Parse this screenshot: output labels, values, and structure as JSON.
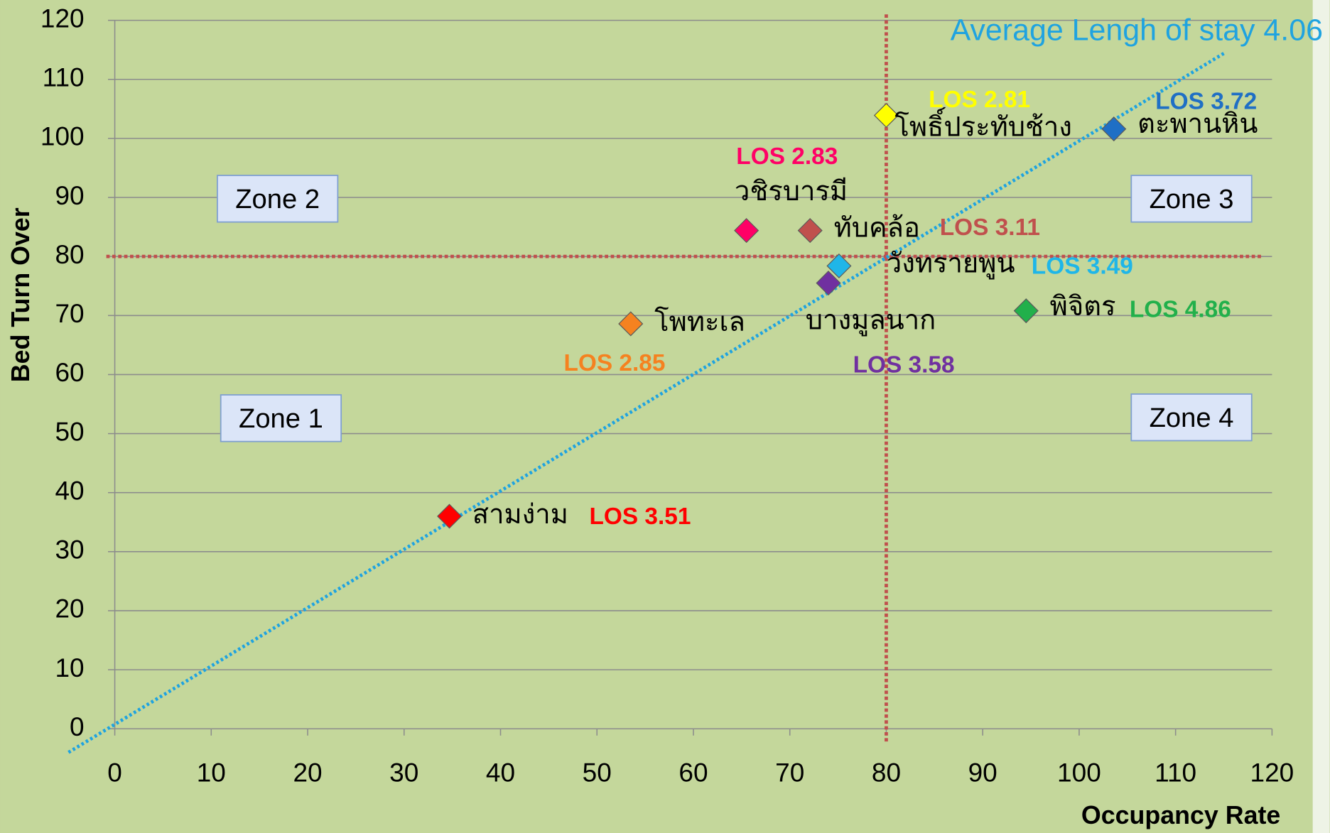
{
  "chart_data": {
    "type": "scatter",
    "xlabel": "Occupancy Rate",
    "ylabel": "Bed Turn Over",
    "xlim": [
      0,
      120
    ],
    "ylim": [
      0,
      120
    ],
    "xticks": [
      0,
      10,
      20,
      30,
      40,
      50,
      60,
      70,
      80,
      90,
      100,
      110,
      120
    ],
    "yticks": [
      0,
      10,
      20,
      30,
      40,
      50,
      60,
      70,
      80,
      90,
      100,
      110,
      120
    ],
    "grid": true,
    "vline": 80,
    "hline": 80,
    "trendline": {
      "label": "Average Lengh of stay 4.06",
      "color": "#1fa3e0",
      "x": [
        -4.8,
        115
      ],
      "y": [
        -4,
        114.4
      ]
    },
    "zones": [
      "Zone 1",
      "Zone 2",
      "Zone 3",
      "Zone 4"
    ],
    "series": [
      {
        "name": "สามง่าม",
        "label": "LOS 3.51",
        "color": "#ff0000",
        "x": [
          34.7
        ],
        "values": [
          36.0
        ]
      },
      {
        "name": "โพทะเล",
        "label": "LOS 2.85",
        "color": "#f58220",
        "x": [
          53.5
        ],
        "values": [
          68.6
        ]
      },
      {
        "name": "วชิรบารมี",
        "label": "LOS 2.83",
        "color": "#ff0066",
        "x": [
          65.5
        ],
        "values": [
          84.4
        ]
      },
      {
        "name": "ทับคล้อ",
        "label": "LOS 3.11",
        "color": "#c0504d",
        "x": [
          72.1
        ],
        "values": [
          84.4
        ]
      },
      {
        "name": "วังทรายพูน",
        "label": "LOS 3.49",
        "color": "#1fb6e8",
        "x": [
          75.1
        ],
        "values": [
          78.4
        ]
      },
      {
        "name": "บางมูลนาก",
        "label": "LOS 3.58",
        "color": "#7030a0",
        "x": [
          74.0
        ],
        "values": [
          75.5
        ]
      },
      {
        "name": "โพธิ์ประทับช้าง",
        "label": "LOS 2.81",
        "color": "#ffff00",
        "x": [
          80.0
        ],
        "values": [
          103.9
        ]
      },
      {
        "name": "ตะพานหิน",
        "label": "LOS 3.72",
        "color": "#1f6fc5",
        "x": [
          103.6
        ],
        "values": [
          101.6
        ]
      },
      {
        "name": "พิจิตร",
        "label": "LOS 4.86",
        "color": "#22b04b",
        "x": [
          94.5
        ],
        "values": [
          70.8
        ]
      }
    ]
  }
}
